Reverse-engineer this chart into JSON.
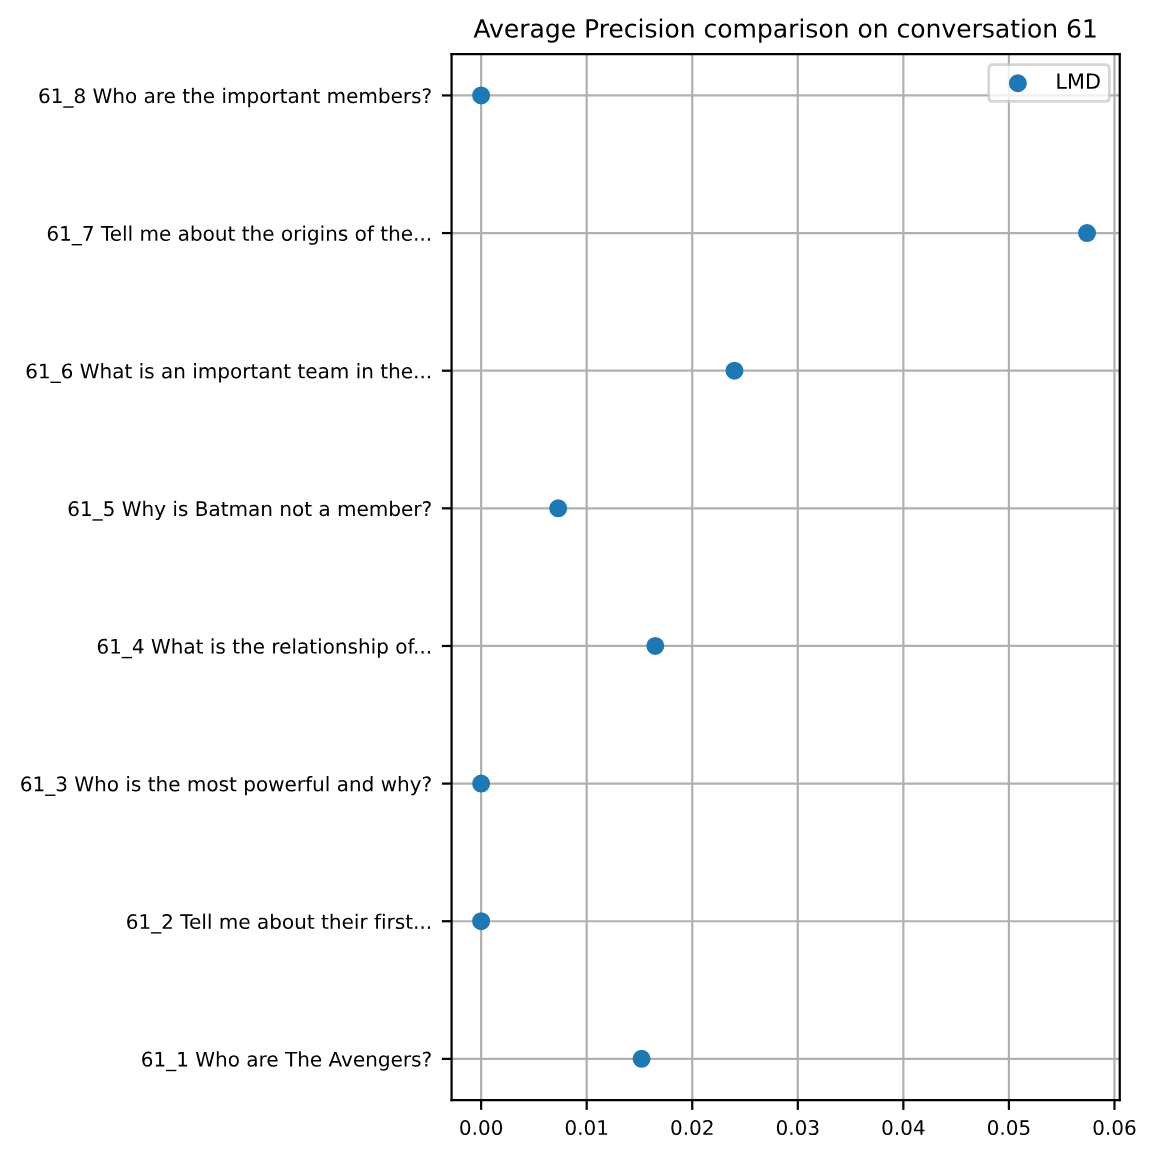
{
  "chart_data": {
    "type": "scatter",
    "orientation": "horizontal",
    "title": "Average Precision comparison on conversation 61",
    "categories": [
      "61_8 Who are the important members?",
      "61_7 Tell me about the origins of the...",
      "61_6 What is an important team in the...",
      "61_5 Why is Batman not a member?",
      "61_4 What is the relationship of...",
      "61_3 Who is the most powerful and why?",
      "61_2 Tell me about their first...",
      "61_1 Who are The Avengers?"
    ],
    "series": [
      {
        "name": "LMD",
        "color": "#1f77b4",
        "values": [
          0,
          0.0574,
          0.024,
          0.0073,
          0.0165,
          0,
          0,
          0.0152
        ]
      }
    ],
    "xlim": [
      -0.0028,
      0.0605
    ],
    "xticks": [
      {
        "value": 0,
        "label": "0.00"
      },
      {
        "value": 0.01,
        "label": "0.01"
      },
      {
        "value": 0.02,
        "label": "0.02"
      },
      {
        "value": 0.03,
        "label": "0.03"
      },
      {
        "value": 0.04,
        "label": "0.04"
      },
      {
        "value": 0.05,
        "label": "0.05"
      },
      {
        "value": 0.06,
        "label": "0.06"
      }
    ],
    "grid": true,
    "legend": "top right",
    "marker": "circle"
  }
}
